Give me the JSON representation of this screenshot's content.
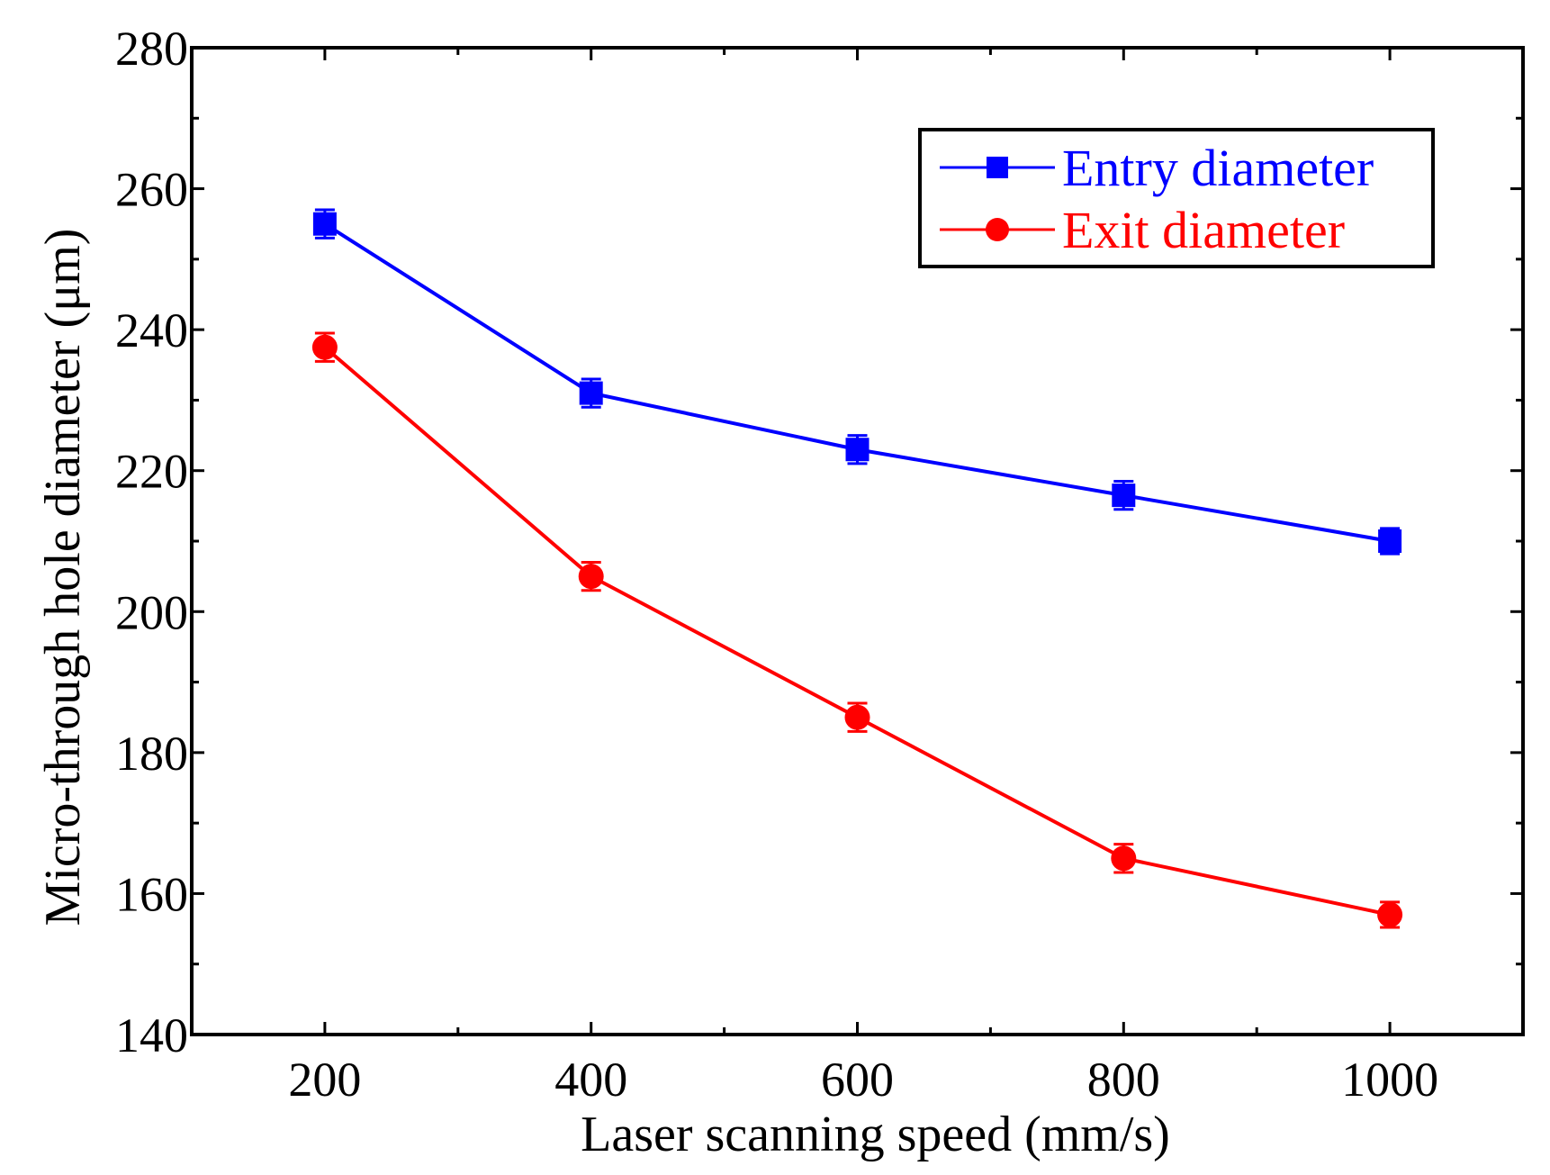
{
  "chart_data": {
    "type": "line",
    "title": "",
    "xlabel": "Laser scanning speed (mm/s)",
    "ylabel": "Micro-through hole diameter (μm)",
    "xlim": [
      100,
      1100
    ],
    "ylim": [
      140,
      280
    ],
    "x_ticks": [
      200,
      400,
      600,
      800,
      1000
    ],
    "x_ticks_minor": [
      300,
      500,
      700,
      900
    ],
    "y_ticks": [
      140,
      160,
      180,
      200,
      220,
      240,
      260,
      280
    ],
    "y_ticks_minor": [
      150,
      170,
      190,
      210,
      230,
      250,
      270
    ],
    "x": [
      200,
      400,
      600,
      800,
      1000
    ],
    "legend_position": "top-right",
    "grid": false,
    "series": [
      {
        "name": "Entry diameter",
        "color": "#0000ff",
        "marker": "square",
        "values": [
          255,
          231,
          223,
          216.5,
          210
        ],
        "errors": [
          2,
          2,
          2,
          2,
          1.8
        ]
      },
      {
        "name": "Exit diameter",
        "color": "#ff0000",
        "marker": "circle",
        "values": [
          237.5,
          205,
          185,
          165,
          157
        ],
        "errors": [
          2,
          2,
          2,
          2,
          1.8
        ]
      }
    ]
  }
}
